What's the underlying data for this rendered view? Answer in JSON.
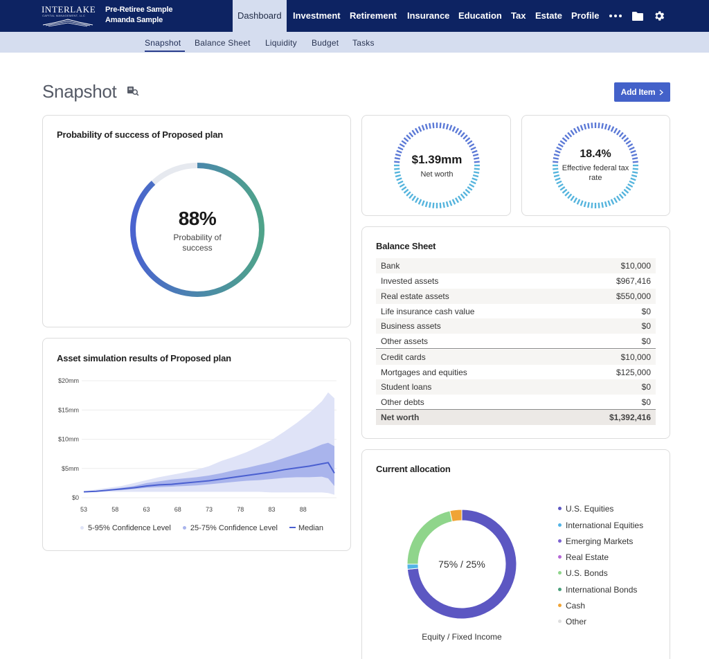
{
  "brand": {
    "name": "INTERLAKE",
    "subtitle": "CAPITAL MANAGEMENT, LLC",
    "client_line1": "Pre-Retiree Sample",
    "client_line2": "Amanda Sample"
  },
  "nav": {
    "items": [
      "Dashboard",
      "Investment",
      "Retirement",
      "Insurance",
      "Education",
      "Tax",
      "Estate",
      "Profile"
    ],
    "more_icon": "ellipsis-icon",
    "folder_icon": "folder-icon",
    "settings_icon": "gear-icon"
  },
  "subnav": {
    "items": [
      "Snapshot",
      "Balance Sheet",
      "Liquidity",
      "Budget",
      "Tasks"
    ]
  },
  "page": {
    "title": "Snapshot",
    "add_item": "Add Item"
  },
  "probability_card": {
    "title": "Probability of success of Proposed plan",
    "value": "88%",
    "value_fraction": 0.88,
    "label": "Probability of success"
  },
  "net_worth_card": {
    "value": "$1.39mm",
    "label": "Net worth"
  },
  "tax_card": {
    "value": "18.4%",
    "label": "Effective federal tax rate"
  },
  "balance_sheet": {
    "title": "Balance Sheet",
    "assets": [
      {
        "label": "Bank",
        "value": "$10,000"
      },
      {
        "label": "Invested assets",
        "value": "$967,416"
      },
      {
        "label": "Real estate assets",
        "value": "$550,000"
      },
      {
        "label": "Life insurance cash value",
        "value": "$0"
      },
      {
        "label": "Business assets",
        "value": "$0"
      },
      {
        "label": "Other assets",
        "value": "$0"
      }
    ],
    "liabilities": [
      {
        "label": "Credit cards",
        "value": "$10,000"
      },
      {
        "label": "Mortgages and equities",
        "value": "$125,000"
      },
      {
        "label": "Student loans",
        "value": "$0"
      },
      {
        "label": "Other debts",
        "value": "$0"
      }
    ],
    "total": {
      "label": "Net worth",
      "value": "$1,392,416"
    }
  },
  "chart_data": {
    "type": "area",
    "title": "Asset simulation results of Proposed plan",
    "xlabel": "",
    "ylabel": "",
    "x_ticks": [
      "53",
      "58",
      "63",
      "68",
      "73",
      "78",
      "83",
      "88"
    ],
    "y_ticks": [
      "$0",
      "$5mm",
      "$10mm",
      "$15mm",
      "$20mm"
    ],
    "xlim": [
      53,
      93
    ],
    "ylim": [
      0,
      20
    ],
    "x": [
      53,
      55,
      57,
      59,
      61,
      63,
      65,
      67,
      69,
      71,
      73,
      75,
      77,
      79,
      81,
      83,
      85,
      87,
      89,
      91,
      92,
      93
    ],
    "series": [
      {
        "name": "5-95% Confidence Level",
        "low": [
          0.9,
          1.0,
          1.0,
          1.0,
          1.0,
          1.0,
          1.0,
          1.0,
          1.0,
          1.0,
          1.0,
          1.0,
          1.0,
          1.0,
          1.0,
          0.9,
          0.9,
          0.9,
          0.9,
          0.9,
          0.8,
          0.5
        ],
        "high": [
          1.1,
          1.4,
          1.7,
          2.0,
          2.5,
          3.0,
          3.5,
          3.9,
          4.3,
          4.8,
          5.4,
          6.3,
          7.0,
          7.8,
          8.8,
          9.9,
          11.3,
          12.8,
          14.5,
          16.5,
          18.0,
          17.0
        ]
      },
      {
        "name": "25-75% Confidence Level",
        "low": [
          1.0,
          1.1,
          1.2,
          1.3,
          1.5,
          1.7,
          1.8,
          1.9,
          2.0,
          2.1,
          2.3,
          2.5,
          2.7,
          2.9,
          3.0,
          3.2,
          3.4,
          3.5,
          3.5,
          3.6,
          3.3,
          2.0
        ],
        "high": [
          1.0,
          1.2,
          1.4,
          1.7,
          2.0,
          2.5,
          2.8,
          3.1,
          3.3,
          3.5,
          3.8,
          4.2,
          4.7,
          5.1,
          5.6,
          6.1,
          6.8,
          7.5,
          8.2,
          9.1,
          9.4,
          8.8
        ]
      },
      {
        "name": "Median",
        "values": [
          1.0,
          1.1,
          1.3,
          1.5,
          1.7,
          2.0,
          2.2,
          2.3,
          2.5,
          2.7,
          2.9,
          3.2,
          3.5,
          3.8,
          4.1,
          4.4,
          4.8,
          5.1,
          5.4,
          5.8,
          6.0,
          4.2
        ]
      }
    ],
    "legend": [
      "5-95% Confidence Level",
      "25-75% Confidence Level",
      "Median"
    ],
    "colors": {
      "band_outer": "#dfe3f7",
      "band_inner": "#a9b4ec",
      "median": "#4a5fd0"
    }
  },
  "allocation": {
    "title": "Current allocation",
    "center_label": "75% / 25%",
    "caption": "Equity / Fixed Income",
    "type": "pie",
    "slices": [
      {
        "name": "U.S. Equities",
        "value": 73.5,
        "color": "#5c57c2"
      },
      {
        "name": "International Equities",
        "value": 1.5,
        "color": "#52b4e6"
      },
      {
        "name": "Emerging Markets",
        "value": 0,
        "color": "#7c63d1"
      },
      {
        "name": "Real Estate",
        "value": 0,
        "color": "#b667d6"
      },
      {
        "name": "U.S. Bonds",
        "value": 21.5,
        "color": "#8fd58b"
      },
      {
        "name": "International Bonds",
        "value": 0,
        "color": "#4aa07b"
      },
      {
        "name": "Cash",
        "value": 3.5,
        "color": "#f0a435"
      },
      {
        "name": "Other",
        "value": 0,
        "color": "#dedede"
      }
    ]
  }
}
